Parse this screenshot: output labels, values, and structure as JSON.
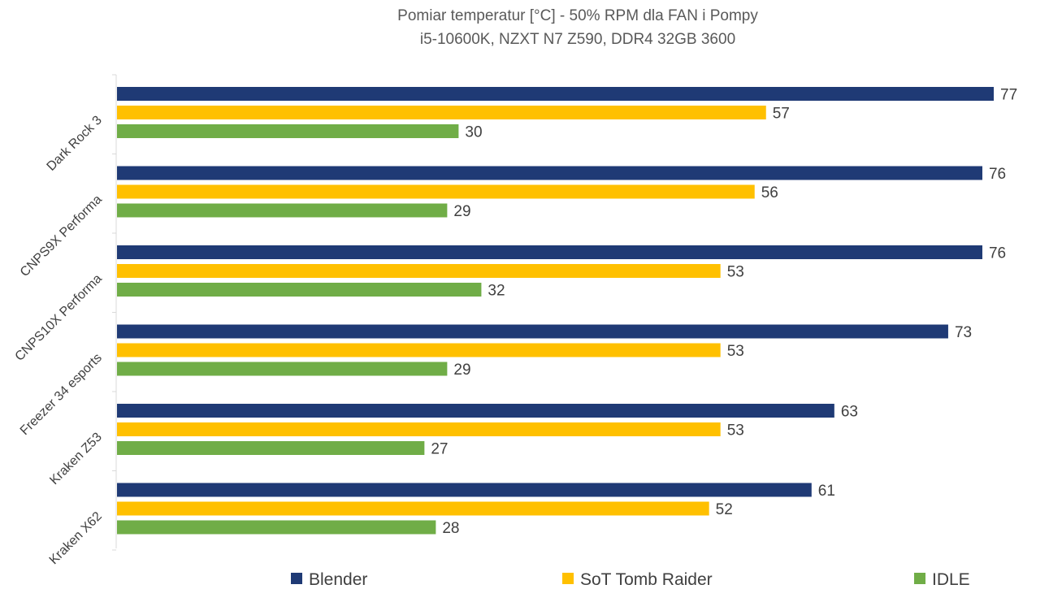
{
  "chart_data": {
    "type": "bar",
    "orientation": "horizontal",
    "title": "Pomiar temperatur [°C] - 50% RPM dla FAN i Pompy",
    "subtitle": "i5-10600K, NZXT N7 Z590, DDR4 32GB 3600",
    "categories": [
      "Dark Rock 3",
      "CNPS9X Performa",
      "CNPS10X Performa",
      "Freezer 34 esports",
      "Kraken Z53",
      "Kraken X62"
    ],
    "series": [
      {
        "name": "Blender",
        "color": "#1f3a75",
        "values": [
          77,
          76,
          76,
          73,
          63,
          61
        ]
      },
      {
        "name": "SoT Tomb Raider",
        "color": "#ffc000",
        "values": [
          57,
          56,
          53,
          53,
          53,
          52
        ]
      },
      {
        "name": "IDLE",
        "color": "#70ad47",
        "values": [
          30,
          29,
          32,
          29,
          27,
          28
        ]
      }
    ],
    "xlim": [
      0,
      77
    ],
    "grid": false,
    "data_labels": true,
    "legend_position": "bottom"
  }
}
